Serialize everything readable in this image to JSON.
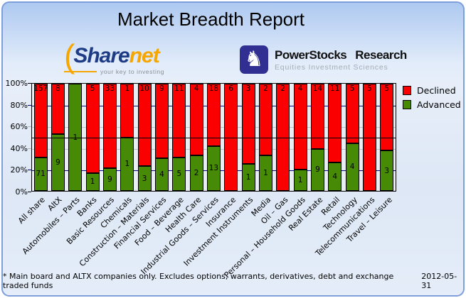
{
  "title": "Market Breadth Report",
  "logos": {
    "sharenet": {
      "part1": "Share",
      "part2": "net",
      "arc_glyph": "(",
      "tagline": "your key to investing",
      "color_navy": "#1E3C86",
      "color_orange": "#F7A600"
    },
    "powerstocks": {
      "name1": "PowerStocks",
      "name2": "Research",
      "tagline": "Equities Investment Sciences",
      "icon_glyph": "♞",
      "icon_bg": "#312F91"
    }
  },
  "chart_data": {
    "type": "bar",
    "stacked": true,
    "normalized_to_percent": true,
    "title": "Market Breadth Report",
    "categories": [
      "All share",
      "AltX",
      "Automobiles – Parts",
      "Banks",
      "Basic Resources",
      "Chemicals",
      "Construction – Materials",
      "Financial Services",
      "Food – Beverage",
      "Health Care",
      "Industrial Goods – Services",
      "Insurance",
      "Investment Instruments",
      "Media",
      "Oil – Gas",
      "Personal – Household Goods",
      "Real Estate",
      "Retail",
      "Technology",
      "Telecommunications",
      "Travel – Leisure"
    ],
    "series": [
      {
        "name": "Declined",
        "color": "#FB0000",
        "values": [
          157,
          8,
          0,
          5,
          33,
          1,
          10,
          9,
          11,
          4,
          18,
          6,
          3,
          2,
          2,
          4,
          14,
          11,
          5,
          5,
          5
        ]
      },
      {
        "name": "Advanced",
        "color": "#478A05",
        "values": [
          71,
          9,
          1,
          1,
          9,
          1,
          3,
          4,
          5,
          2,
          13,
          0,
          1,
          1,
          0,
          1,
          9,
          4,
          4,
          0,
          3
        ]
      }
    ],
    "ylim": [
      0,
      100
    ],
    "yticks": [
      {
        "label": "100%",
        "pct": 100,
        "tick": "#000000"
      },
      {
        "label": "80%",
        "pct": 80,
        "tick": "#000080"
      },
      {
        "label": "60%",
        "pct": 60,
        "tick": "#AEB4BE"
      },
      {
        "label": "40%",
        "pct": 40,
        "tick": "#AEB4BE"
      },
      {
        "label": "20%",
        "pct": 20,
        "tick": "#000080"
      },
      {
        "label": "0%",
        "pct": 0,
        "tick": "#000000"
      }
    ],
    "gridlines": [
      {
        "pct": 80,
        "color": "#000080"
      },
      {
        "pct": 60,
        "color": "#BCC2CA"
      },
      {
        "pct": 40,
        "color": "#BCC2CA"
      },
      {
        "pct": 20,
        "color": "#000080"
      }
    ],
    "reference_line": {
      "pct": 50,
      "color": "#000000"
    },
    "plot_bg": "#E9EEF5",
    "legend_position": "right",
    "legend_entries": [
      "Declined",
      "Advanced"
    ]
  },
  "footer": {
    "note": "* Main board and ALTX companies only. Excludes options, warrants, derivatives, debt and exchange traded funds",
    "date": "2012-05-31"
  }
}
